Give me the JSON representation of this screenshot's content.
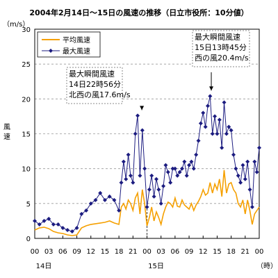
{
  "chart_data": {
    "type": "line",
    "title": "2004年2月14日～15日の風速の推移（日立市役所：10分値）",
    "ylabel": "風速",
    "yunit": "（m/s）",
    "ylim": [
      0,
      30
    ],
    "yticks": [
      0,
      5,
      10,
      15,
      20,
      25,
      30
    ],
    "xunit": "（時）",
    "xlim": [
      0,
      48
    ],
    "xtick_hours": [
      0,
      3,
      6,
      9,
      12,
      15,
      18,
      21,
      24,
      27,
      30,
      33,
      36,
      39,
      42,
      45,
      48
    ],
    "xtick_labels": [
      "00",
      "03",
      "06",
      "09",
      "12",
      "15",
      "18",
      "21",
      "00",
      "03",
      "06",
      "09",
      "12",
      "15",
      "18",
      "21",
      "00"
    ],
    "date_labels": [
      {
        "hour": 0,
        "text": "14日"
      },
      {
        "hour": 24,
        "text": "15日"
      }
    ],
    "grid": "horizontal dashed",
    "legend": "top-left",
    "series": [
      {
        "name": "平均風速",
        "color": "#f5a000",
        "hours": [
          0,
          1,
          2,
          3,
          4,
          5,
          6,
          7,
          8,
          9,
          10,
          11,
          12,
          13,
          14,
          15,
          16,
          17,
          18,
          18.5,
          19,
          19.5,
          20,
          20.5,
          21,
          21.5,
          22,
          22.5,
          23,
          23.5,
          24,
          24.5,
          25,
          25.5,
          26,
          26.5,
          27,
          27.5,
          28,
          28.5,
          29,
          29.5,
          30,
          30.5,
          31,
          31.5,
          32,
          32.5,
          33,
          33.5,
          34,
          34.5,
          35,
          35.5,
          36,
          36.5,
          37,
          37.5,
          38,
          38.5,
          39,
          39.5,
          40,
          40.5,
          41,
          41.5,
          42,
          42.5,
          43,
          43.5,
          44,
          44.5,
          45,
          45.5,
          46,
          46.5,
          47,
          47.5,
          48
        ],
        "values": [
          1.2,
          1.5,
          1.6,
          1.4,
          1.0,
          0.8,
          0.7,
          0.5,
          0.4,
          0.5,
          1.5,
          1.8,
          2.0,
          2.1,
          2.2,
          2.3,
          2.5,
          2.2,
          2.0,
          4.5,
          5.0,
          4.2,
          5.5,
          5.0,
          4.0,
          5.8,
          6.5,
          3.5,
          7.0,
          5.0,
          1.8,
          3.0,
          4.5,
          2.5,
          3.8,
          3.0,
          2.0,
          3.5,
          4.5,
          5.2,
          5.0,
          4.5,
          5.8,
          4.6,
          4.5,
          5.5,
          4.8,
          4.5,
          4.2,
          5.0,
          4.0,
          4.8,
          5.3,
          6.0,
          7.0,
          6.2,
          6.5,
          8.0,
          6.5,
          7.8,
          7.0,
          8.5,
          6.0,
          9.8,
          6.5,
          7.8,
          8.0,
          7.0,
          6.5,
          5.0,
          4.5,
          5.5,
          3.5,
          5.5,
          4.0,
          2.0,
          3.5,
          4.0,
          4.5
        ]
      },
      {
        "name": "最大風速",
        "color": "#1c1c80",
        "hours": [
          0,
          1,
          2,
          3,
          4,
          5,
          6,
          7,
          8,
          9,
          10,
          11,
          12,
          13,
          14,
          15,
          16,
          17,
          18,
          18.5,
          19,
          19.5,
          20,
          20.5,
          21,
          21.5,
          22,
          22.5,
          23,
          23.5,
          24,
          24.5,
          25,
          25.5,
          26,
          26.5,
          27,
          27.5,
          28,
          28.5,
          29,
          29.5,
          30,
          30.5,
          31,
          31.5,
          32,
          32.5,
          33,
          33.5,
          34,
          34.5,
          35,
          35.5,
          36,
          36.5,
          37,
          37.5,
          38,
          38.5,
          39,
          39.5,
          40,
          40.5,
          41,
          41.5,
          42,
          42.5,
          43,
          43.5,
          44,
          44.5,
          45,
          45.5,
          46,
          46.5,
          47,
          47.5,
          48
        ],
        "values": [
          2.5,
          2.0,
          2.5,
          2.8,
          2.0,
          2.0,
          1.5,
          1.2,
          1.0,
          1.5,
          3.5,
          4.0,
          5.0,
          5.5,
          6.5,
          5.5,
          6.0,
          5.5,
          4.0,
          8.0,
          11.0,
          8.5,
          12.0,
          9.0,
          8.0,
          15.0,
          17.6,
          9.0,
          15.5,
          10.0,
          4.5,
          7.0,
          9.0,
          6.0,
          8.5,
          7.0,
          5.0,
          7.5,
          10.5,
          9.5,
          8.0,
          10.0,
          10.0,
          9.0,
          9.5,
          10.0,
          11.0,
          9.0,
          10.5,
          11.0,
          10.0,
          12.0,
          14.0,
          16.5,
          18.0,
          16.0,
          19.0,
          20.4,
          15.0,
          17.5,
          15.0,
          17.0,
          13.0,
          19.5,
          15.0,
          16.0,
          15.5,
          12.0,
          10.0,
          9.0,
          8.0,
          10.5,
          8.5,
          11.0,
          7.0,
          4.5,
          11.0,
          9.5,
          13.0
        ]
      }
    ],
    "annotations": [
      {
        "id": "ann1",
        "lines": [
          "最大瞬間風速",
          "14日22時56分",
          "北西の風17.6m/s"
        ],
        "hour": 22.9,
        "value": 17.6
      },
      {
        "id": "ann2",
        "lines": [
          "最大瞬間風速",
          "15日13時45分",
          "西の風20.4m/s"
        ],
        "hour": 37.75,
        "value": 20.4
      }
    ]
  }
}
